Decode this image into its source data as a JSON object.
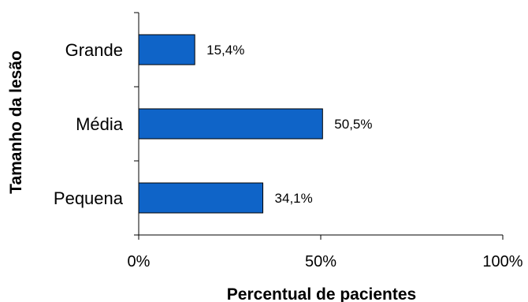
{
  "chart_data": {
    "type": "bar",
    "orientation": "horizontal",
    "categories": [
      "Grande",
      "Média",
      "Pequena"
    ],
    "values": [
      15.4,
      50.5,
      34.1
    ],
    "value_labels": [
      "15,4%",
      "50,5%",
      "34,1%"
    ],
    "xlim": [
      0,
      100
    ],
    "x_ticks": [
      0,
      50,
      100
    ],
    "x_tick_labels": [
      "0%",
      "50%",
      "100%"
    ],
    "xlabel": "Percentual de pacientes",
    "ylabel": "Tamanho da lesão",
    "grid": false,
    "legend": "none",
    "bar_color": "#0F64C8",
    "bar_edge_color": "#000000"
  }
}
